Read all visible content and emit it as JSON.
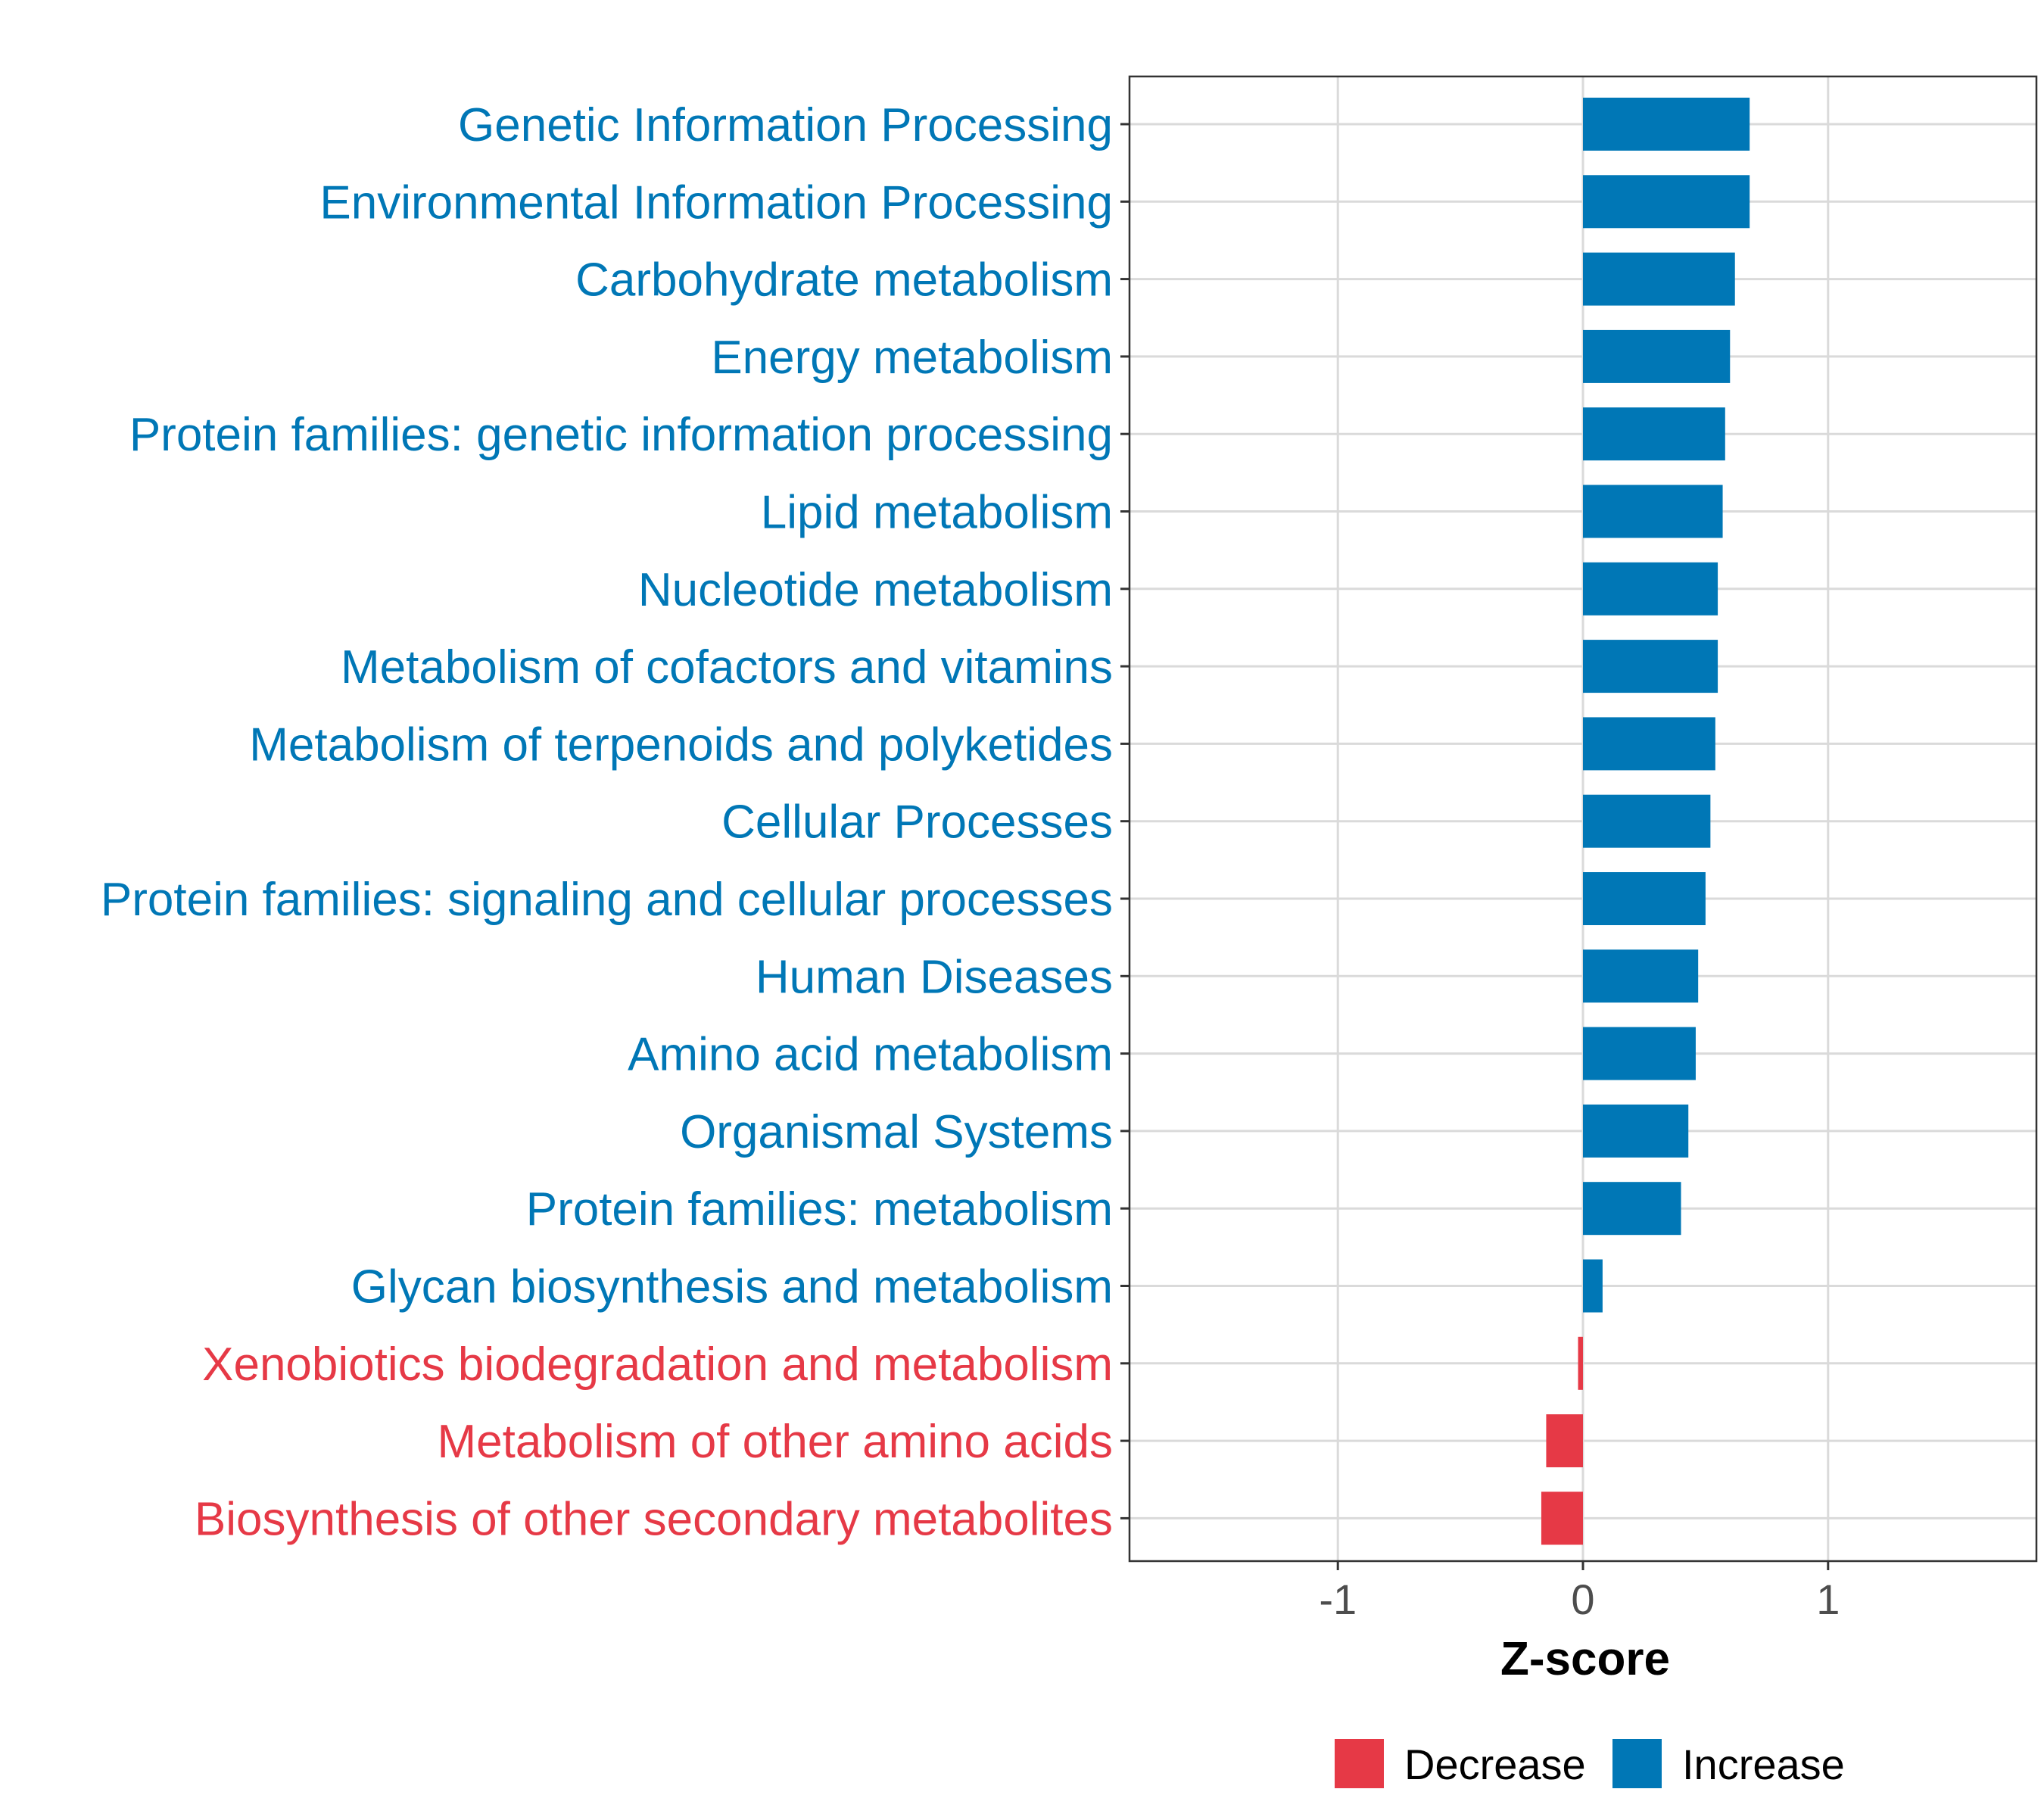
{
  "chart_data": {
    "type": "bar",
    "orientation": "horizontal",
    "title": "",
    "xlabel": "Z-score",
    "ylabel": "",
    "xlim": [
      -1.85,
      1.85
    ],
    "xticks": [
      -1,
      0,
      1
    ],
    "xtick_labels": [
      "-1",
      "0",
      "1"
    ],
    "grid": true,
    "categories": [
      "Genetic Information Processing",
      "Environmental Information Processing",
      "Carbohydrate metabolism",
      "Energy metabolism",
      "Protein families: genetic information processing",
      "Lipid metabolism",
      "Nucleotide metabolism",
      "Metabolism of cofactors and vitamins",
      "Metabolism of terpenoids and polyketides",
      "Cellular Processes",
      "Protein families: signaling and cellular processes",
      "Human Diseases",
      "Amino acid metabolism",
      "Organismal Systems",
      "Protein families: metabolism",
      "Glycan biosynthesis and metabolism",
      "Xenobiotics biodegradation and metabolism",
      "Metabolism of other amino acids",
      "Biosynthesis of other secondary metabolites"
    ],
    "values": [
      0.68,
      0.68,
      0.62,
      0.6,
      0.58,
      0.57,
      0.55,
      0.55,
      0.54,
      0.52,
      0.5,
      0.47,
      0.46,
      0.43,
      0.4,
      0.08,
      -0.02,
      -0.15,
      -0.17
    ],
    "groups": [
      "Increase",
      "Increase",
      "Increase",
      "Increase",
      "Increase",
      "Increase",
      "Increase",
      "Increase",
      "Increase",
      "Increase",
      "Increase",
      "Increase",
      "Increase",
      "Increase",
      "Increase",
      "Increase",
      "Decrease",
      "Decrease",
      "Decrease"
    ],
    "legend": {
      "position": "bottom",
      "entries": [
        {
          "label": "Decrease",
          "color": "#e63946"
        },
        {
          "label": "Increase",
          "color": "#0077b6"
        }
      ]
    },
    "colors": {
      "Increase": "#0077b6",
      "Decrease": "#e63946"
    }
  }
}
